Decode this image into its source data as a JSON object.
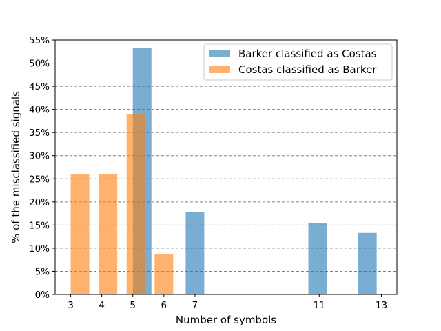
{
  "chart_data": {
    "type": "bar",
    "title": "",
    "xlabel": "Number of symbols",
    "ylabel": "% of the misclassified signals",
    "x_ticks": [
      3,
      4,
      5,
      6,
      7,
      11,
      13
    ],
    "y_ticks": [
      "0%",
      "5%",
      "10%",
      "15%",
      "20%",
      "25%",
      "30%",
      "35%",
      "40%",
      "45%",
      "50%",
      "55%"
    ],
    "xlim": [
      2.5,
      13.5
    ],
    "ylim": [
      0,
      55
    ],
    "grid": "y-dashed",
    "legend_position": "top-right",
    "series": [
      {
        "name": "Barker classified as Costas",
        "color": "#1f77b4",
        "opacity": 0.6,
        "points": [
          {
            "x": 5.3,
            "y": 53.3
          },
          {
            "x": 7.0,
            "y": 17.8
          },
          {
            "x": 10.95,
            "y": 15.5
          },
          {
            "x": 12.55,
            "y": 13.3
          }
        ]
      },
      {
        "name": "Costas classified as Barker",
        "color": "#ff7f0e",
        "opacity": 0.6,
        "points": [
          {
            "x": 3.3,
            "y": 26.0
          },
          {
            "x": 4.2,
            "y": 26.0
          },
          {
            "x": 5.1,
            "y": 39.0
          },
          {
            "x": 6.0,
            "y": 8.7
          }
        ]
      }
    ]
  }
}
